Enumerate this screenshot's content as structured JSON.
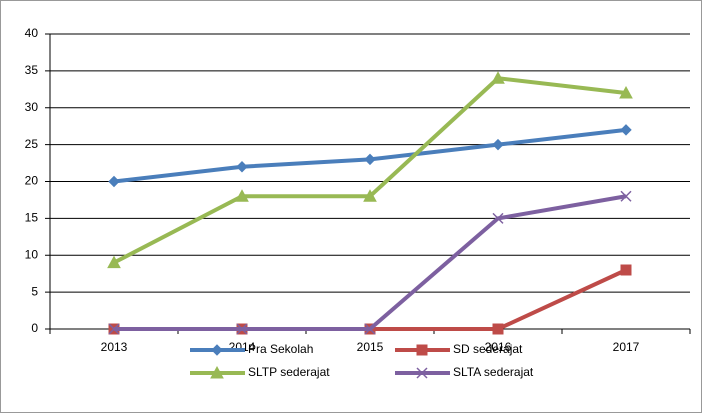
{
  "chart_data": {
    "type": "line",
    "categories": [
      "2013",
      "2014",
      "2015",
      "2016",
      "2017"
    ],
    "series": [
      {
        "name": "Pra Sekolah",
        "color": "#4a7ebb",
        "marker": "diamond",
        "values": [
          20,
          22,
          23,
          25,
          27
        ]
      },
      {
        "name": "SD sederajat",
        "color": "#be4b48",
        "marker": "square",
        "values": [
          0,
          0,
          0,
          0,
          8
        ]
      },
      {
        "name": "SLTP sederajat",
        "color": "#98b954",
        "marker": "triangle",
        "values": [
          9,
          18,
          18,
          34,
          32
        ]
      },
      {
        "name": "SLTA sederajat",
        "color": "#7d60a0",
        "marker": "x",
        "values": [
          0,
          0,
          0,
          15,
          18
        ]
      }
    ],
    "ylim": [
      0,
      40
    ],
    "yticks": [
      0,
      5,
      10,
      15,
      20,
      25,
      30,
      35,
      40
    ],
    "grid": true,
    "legend": "bottom"
  }
}
